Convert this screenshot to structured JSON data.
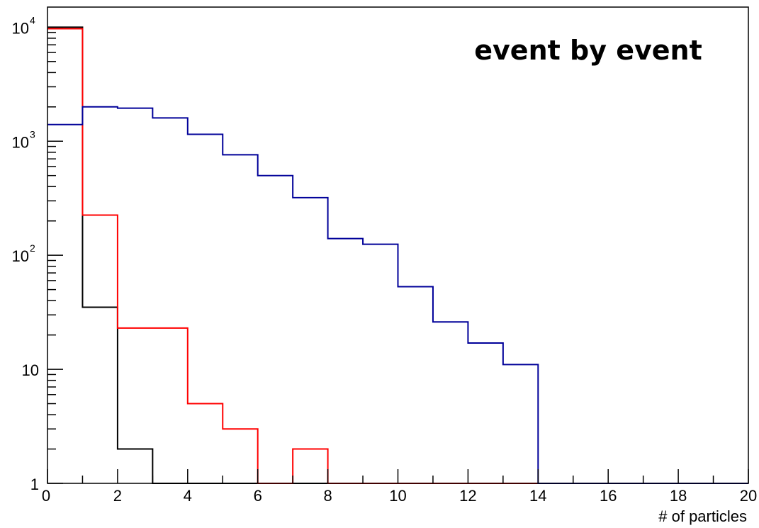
{
  "chart_data": {
    "type": "histogram",
    "title": "event by event",
    "xlabel": "# of particles",
    "ylabel": "",
    "xlim": [
      0,
      20
    ],
    "ylim": [
      1,
      15000
    ],
    "y_scale": "log",
    "grid": false,
    "bin_edges": [
      0,
      1,
      2,
      3,
      4,
      5,
      6,
      7,
      8,
      9,
      10,
      11,
      12,
      13,
      14,
      15,
      16,
      17,
      18,
      19,
      20
    ],
    "x_ticks": [
      "0",
      "2",
      "4",
      "6",
      "8",
      "10",
      "12",
      "14",
      "16",
      "18",
      "20"
    ],
    "y_ticks": [
      {
        "base": "1",
        "exp": ""
      },
      {
        "base": "10",
        "exp": ""
      },
      {
        "base": "10",
        "exp": "2"
      },
      {
        "base": "10",
        "exp": "3"
      },
      {
        "base": "10",
        "exp": "4"
      }
    ],
    "series": [
      {
        "color": "#000000",
        "values": [
          10000,
          35,
          2,
          1,
          1,
          1,
          1,
          1,
          1,
          1,
          1,
          1,
          1,
          1,
          1,
          1,
          1,
          1,
          1,
          1
        ]
      },
      {
        "color": "#ff0000",
        "values": [
          9700,
          225,
          23,
          23,
          5,
          3,
          1,
          2,
          1,
          1,
          1,
          1,
          1,
          1,
          1,
          1,
          1,
          1,
          1,
          1
        ]
      },
      {
        "color": "#000099",
        "values": [
          1400,
          2000,
          1950,
          1600,
          1150,
          760,
          500,
          320,
          140,
          125,
          53,
          26,
          17,
          11,
          1,
          1,
          1,
          1,
          1,
          1
        ]
      }
    ]
  }
}
